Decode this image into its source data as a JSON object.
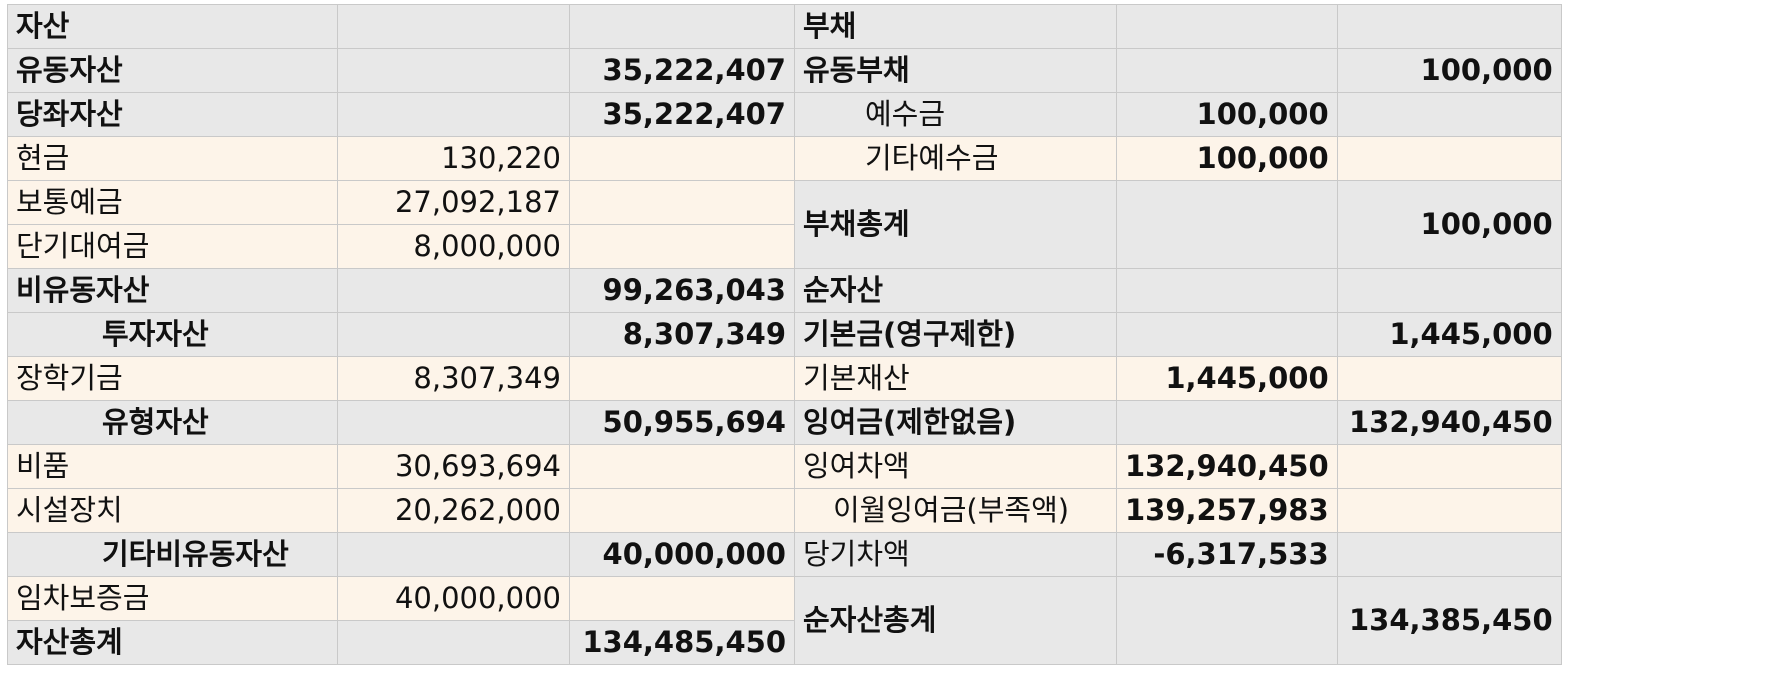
{
  "sheet": {
    "r1": {
      "a": "자산",
      "b": "",
      "c": "",
      "d": "부채",
      "e": "",
      "f": ""
    },
    "r2": {
      "a": "유동자산",
      "b": "",
      "c": "35,222,407",
      "d": "유동부채",
      "e": "",
      "f": "100,000"
    },
    "r3": {
      "a": "당좌자산",
      "b": "",
      "c": "35,222,407",
      "d": "예수금",
      "e": "100,000",
      "f": ""
    },
    "r4": {
      "a": "현금",
      "b": "130,220",
      "c": "",
      "d": "기타예수금",
      "e": "100,000",
      "f": ""
    },
    "r5": {
      "a": "보통예금",
      "b": "27,092,187",
      "c": "",
      "d": "부채총계",
      "e": "",
      "f": "100,000"
    },
    "r6": {
      "a": "단기대여금",
      "b": "8,000,000",
      "c": ""
    },
    "r7": {
      "a": "비유동자산",
      "b": "",
      "c": "99,263,043",
      "d": "순자산",
      "e": "",
      "f": ""
    },
    "r8": {
      "a": "투자자산",
      "b": "",
      "c": "8,307,349",
      "d": "기본금(영구제한)",
      "e": "",
      "f": "1,445,000"
    },
    "r9": {
      "a": "장학기금",
      "b": "8,307,349",
      "c": "",
      "d": "기본재산",
      "e": "1,445,000",
      "f": ""
    },
    "r10": {
      "a": "유형자산",
      "b": "",
      "c": "50,955,694",
      "d": "잉여금(제한없음)",
      "e": "",
      "f": "132,940,450"
    },
    "r11": {
      "a": "비품",
      "b": "30,693,694",
      "c": "",
      "d": "잉여차액",
      "e": "132,940,450",
      "f": ""
    },
    "r12": {
      "a": "시설장치",
      "b": "20,262,000",
      "c": "",
      "d": "이월잉여금(부족액)",
      "e": "139,257,983",
      "f": ""
    },
    "r13": {
      "a": "기타비유동자산",
      "b": "",
      "c": "40,000,000",
      "d": "당기차액",
      "e": "-6,317,533",
      "f": ""
    },
    "r14": {
      "a": "임차보증금",
      "b": "40,000,000",
      "c": "",
      "d": "순자산총계",
      "e": "",
      "f": "134,385,450"
    },
    "r15": {
      "a": "자산총계",
      "b": "",
      "c": "134,485,450"
    }
  }
}
